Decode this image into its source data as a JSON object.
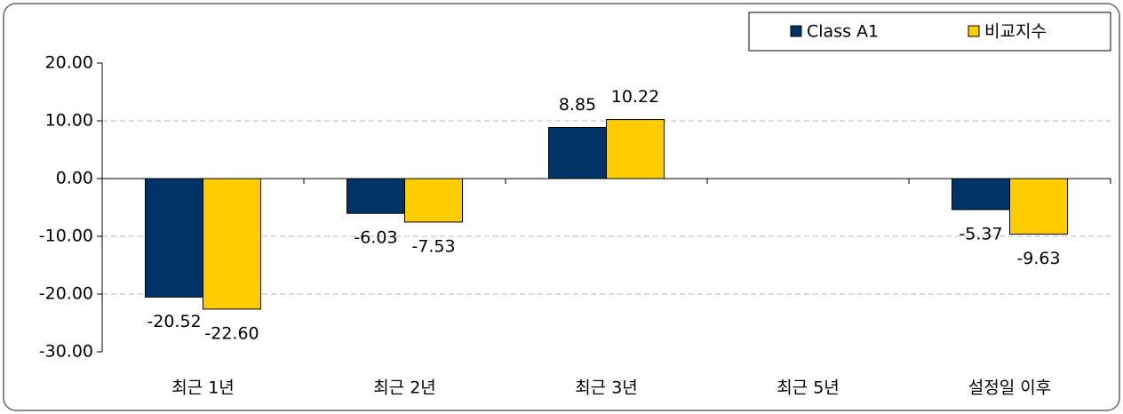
{
  "chart_data": {
    "type": "bar",
    "categories": [
      "최근 1년",
      "최근 2년",
      "최근 3년",
      "최근 5년",
      "설정일 이후"
    ],
    "series": [
      {
        "name": "Class A1",
        "color": "#003366",
        "values": [
          -20.52,
          -6.03,
          8.85,
          null,
          -5.37
        ],
        "value_labels": [
          "-20.52",
          "-6.03",
          "8.85",
          null,
          "-5.37"
        ]
      },
      {
        "name": "비교지수",
        "color": "#ffcc00",
        "values": [
          -22.6,
          -7.53,
          10.22,
          null,
          -9.63
        ],
        "value_labels": [
          "-22.60",
          "-7.53",
          "10.22",
          null,
          "-9.63"
        ]
      }
    ],
    "ylim": [
      -30,
      20
    ],
    "yticks": [
      {
        "value": -30,
        "label": "-30.00"
      },
      {
        "value": -20,
        "label": "-20.00"
      },
      {
        "value": -10,
        "label": "-10.00"
      },
      {
        "value": 0,
        "label": "0.00"
      },
      {
        "value": 10,
        "label": "10.00"
      },
      {
        "value": 20,
        "label": "20.00"
      }
    ],
    "grid": true,
    "legend": "top-right"
  }
}
